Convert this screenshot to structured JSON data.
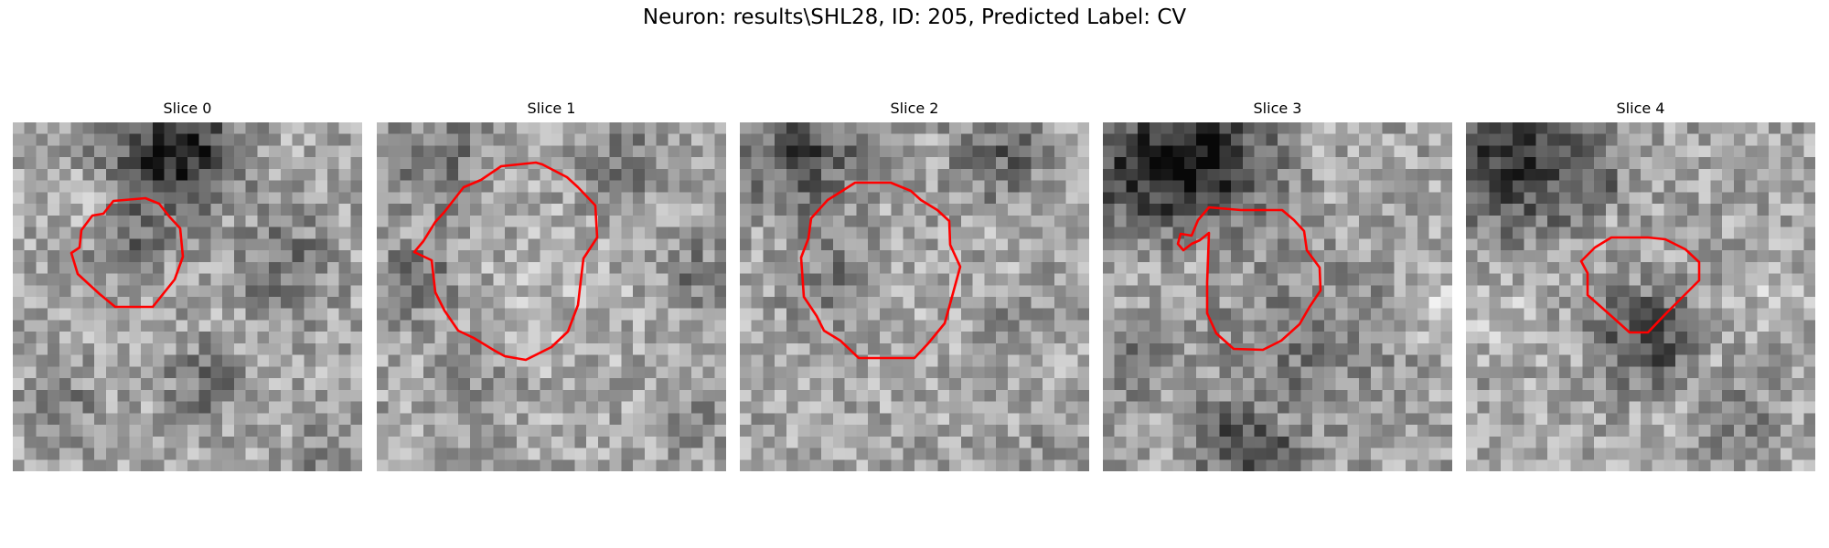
{
  "figure": {
    "title": "Neuron: results\\SHL28, ID: 205, Predicted Label: CV",
    "contour_color": "#ff0000",
    "colormap": "gray"
  },
  "slices": [
    {
      "label": "Slice 0"
    },
    {
      "label": "Slice 1"
    },
    {
      "label": "Slice 2"
    },
    {
      "label": "Slice 3"
    },
    {
      "label": "Slice 4"
    }
  ]
}
